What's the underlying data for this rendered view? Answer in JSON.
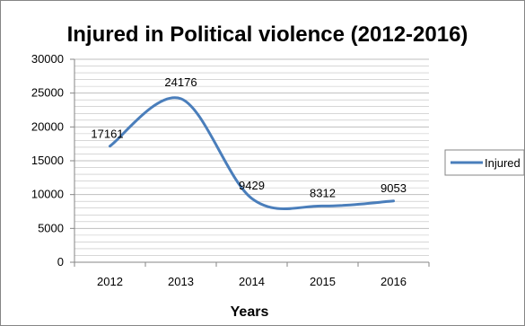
{
  "chart_data": {
    "type": "line",
    "title": "Injured in Political violence (2012-2016)",
    "xlabel": "Years",
    "ylabel": "",
    "categories": [
      "2012",
      "2013",
      "2014",
      "2015",
      "2016"
    ],
    "series": [
      {
        "name": "Injured",
        "values": [
          17161,
          24176,
          9429,
          8312,
          9053
        ]
      }
    ],
    "data_labels": [
      "17161",
      "24176",
      "9429",
      "8312",
      "9053"
    ],
    "yticks": [
      "0",
      "5000",
      "10000",
      "15000",
      "20000",
      "25000",
      "30000"
    ],
    "ylim": [
      0,
      30000
    ],
    "grid": true,
    "legend": "right",
    "colors": {
      "series": "#4a7ebb",
      "grid": "#bfbfbf",
      "axis": "#868686",
      "border": "#868686"
    }
  }
}
